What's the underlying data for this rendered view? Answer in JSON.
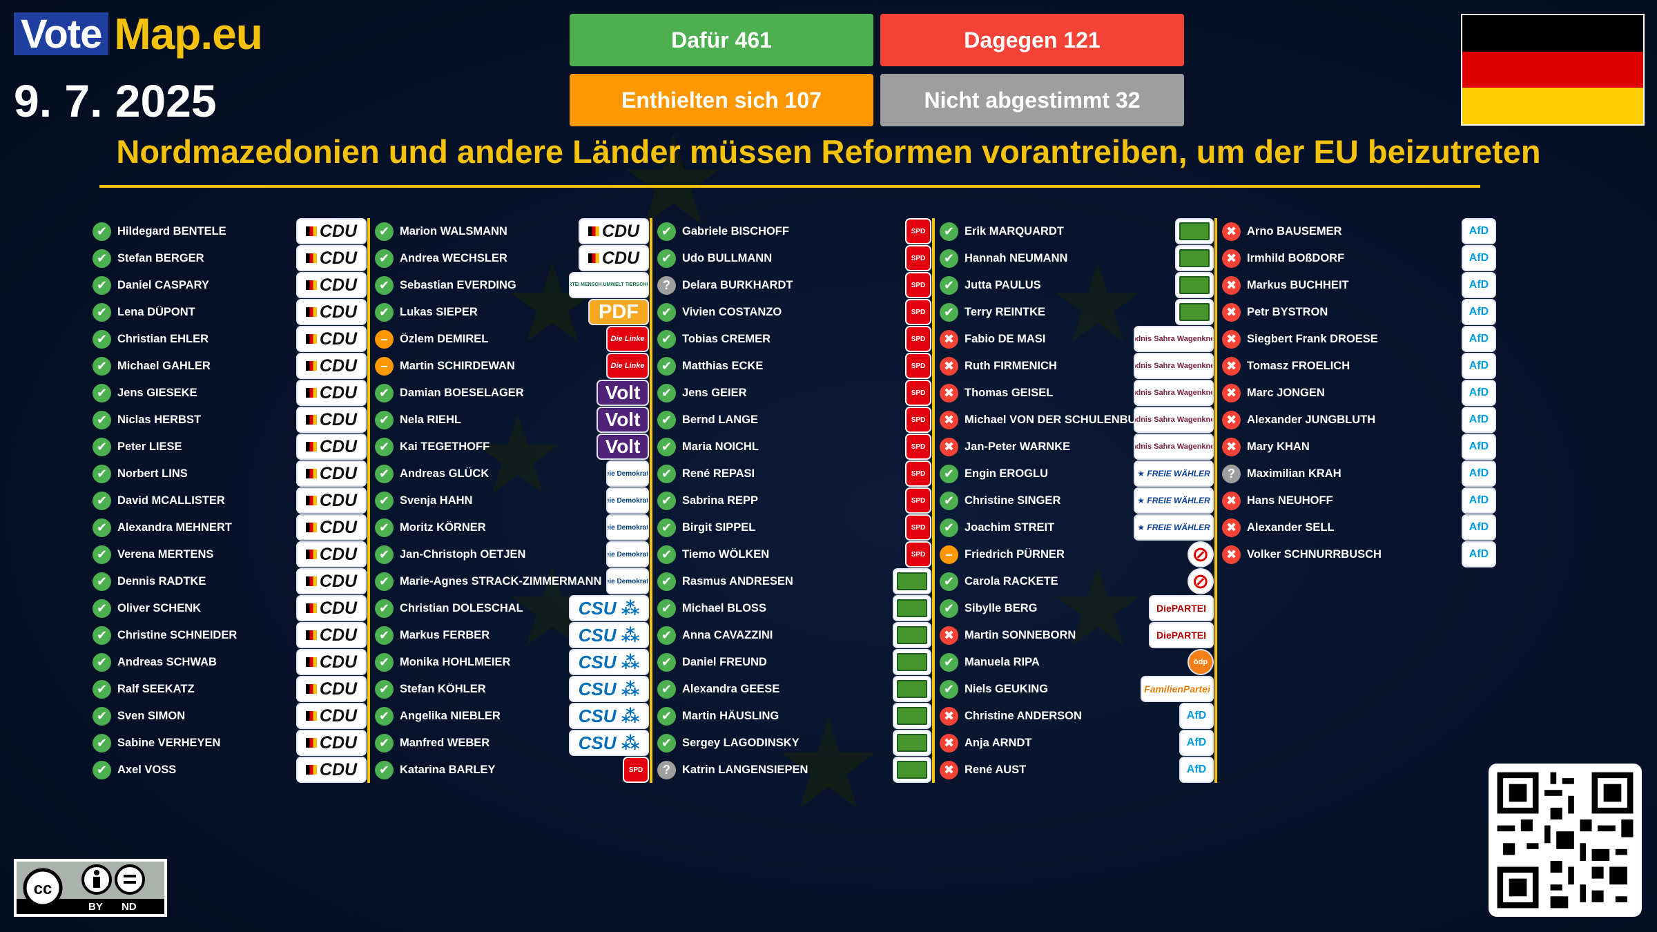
{
  "brand": {
    "part1": "Vote",
    "part2": "Map.eu"
  },
  "date": "9. 7. 2025",
  "stats": {
    "for": "Dafür 461",
    "against": "Dagegen 121",
    "abstain": "Enthielten sich 107",
    "absent": "Nicht abgestimmt 32"
  },
  "colors": {
    "for": "#4caf50",
    "against": "#f44336",
    "abstain": "#ff9800",
    "absent": "#9e9e9e",
    "accent": "#f4c20d"
  },
  "flag": {
    "country": "Germany",
    "stripes": [
      "#000000",
      "#dd0000",
      "#ffce00"
    ]
  },
  "title": "Nordmazedonien und andere Länder müssen Reformen vorantreiben, um der EU beizutreten",
  "license": {
    "labels": [
      "BY",
      "ND"
    ]
  },
  "logo_text": {
    "cdu": "CDU",
    "csu": "CSU",
    "spd": "SPD",
    "afd": "AfD",
    "volt": "Volt",
    "linke": "Die Linke",
    "pdf": "PDF",
    "partei": "DiePARTEI",
    "familien": "Familien"
  },
  "columns": [
    [
      {
        "name": "Hildegard BENTELE",
        "vote": "for",
        "party": "cdu"
      },
      {
        "name": "Stefan BERGER",
        "vote": "for",
        "party": "cdu"
      },
      {
        "name": "Daniel CASPARY",
        "vote": "for",
        "party": "cdu"
      },
      {
        "name": "Lena DÜPONT",
        "vote": "for",
        "party": "cdu"
      },
      {
        "name": "Christian EHLER",
        "vote": "for",
        "party": "cdu"
      },
      {
        "name": "Michael GAHLER",
        "vote": "for",
        "party": "cdu"
      },
      {
        "name": "Jens GIESEKE",
        "vote": "for",
        "party": "cdu"
      },
      {
        "name": "Niclas HERBST",
        "vote": "for",
        "party": "cdu"
      },
      {
        "name": "Peter LIESE",
        "vote": "for",
        "party": "cdu"
      },
      {
        "name": "Norbert LINS",
        "vote": "for",
        "party": "cdu"
      },
      {
        "name": "David MCALLISTER",
        "vote": "for",
        "party": "cdu"
      },
      {
        "name": "Alexandra MEHNERT",
        "vote": "for",
        "party": "cdu"
      },
      {
        "name": "Verena MERTENS",
        "vote": "for",
        "party": "cdu"
      },
      {
        "name": "Dennis RADTKE",
        "vote": "for",
        "party": "cdu"
      },
      {
        "name": "Oliver SCHENK",
        "vote": "for",
        "party": "cdu"
      },
      {
        "name": "Christine SCHNEIDER",
        "vote": "for",
        "party": "cdu"
      },
      {
        "name": "Andreas SCHWAB",
        "vote": "for",
        "party": "cdu"
      },
      {
        "name": "Ralf SEEKATZ",
        "vote": "for",
        "party": "cdu"
      },
      {
        "name": "Sven SIMON",
        "vote": "for",
        "party": "cdu"
      },
      {
        "name": "Sabine VERHEYEN",
        "vote": "for",
        "party": "cdu"
      },
      {
        "name": "Axel VOSS",
        "vote": "for",
        "party": "cdu"
      }
    ],
    [
      {
        "name": "Marion WALSMANN",
        "vote": "for",
        "party": "cdu"
      },
      {
        "name": "Andrea WECHSLER",
        "vote": "for",
        "party": "cdu"
      },
      {
        "name": "Sebastian EVERDING",
        "vote": "for",
        "party": "tier"
      },
      {
        "name": "Lukas SIEPER",
        "vote": "for",
        "party": "pdf"
      },
      {
        "name": "Özlem DEMIREL",
        "vote": "abstain",
        "party": "linke"
      },
      {
        "name": "Martin SCHIRDEWAN",
        "vote": "abstain",
        "party": "linke"
      },
      {
        "name": "Damian BOESELAGER",
        "vote": "for",
        "party": "volt"
      },
      {
        "name": "Nela RIEHL",
        "vote": "for",
        "party": "volt"
      },
      {
        "name": "Kai TEGETHOFF",
        "vote": "for",
        "party": "volt"
      },
      {
        "name": "Andreas GLÜCK",
        "vote": "for",
        "party": "fdp"
      },
      {
        "name": "Svenja HAHN",
        "vote": "for",
        "party": "fdp"
      },
      {
        "name": "Moritz KÖRNER",
        "vote": "for",
        "party": "fdp"
      },
      {
        "name": "Jan-Christoph OETJEN",
        "vote": "for",
        "party": "fdp"
      },
      {
        "name": "Marie-Agnes STRACK-ZIMMERMANN",
        "vote": "for",
        "party": "fdp"
      },
      {
        "name": "Christian DOLESCHAL",
        "vote": "for",
        "party": "csu"
      },
      {
        "name": "Markus FERBER",
        "vote": "for",
        "party": "csu"
      },
      {
        "name": "Monika HOHLMEIER",
        "vote": "for",
        "party": "csu"
      },
      {
        "name": "Stefan KÖHLER",
        "vote": "for",
        "party": "csu"
      },
      {
        "name": "Angelika NIEBLER",
        "vote": "for",
        "party": "csu"
      },
      {
        "name": "Manfred WEBER",
        "vote": "for",
        "party": "csu"
      },
      {
        "name": "Katarina BARLEY",
        "vote": "for",
        "party": "spd"
      }
    ],
    [
      {
        "name": "Gabriele BISCHOFF",
        "vote": "for",
        "party": "spd"
      },
      {
        "name": "Udo BULLMANN",
        "vote": "for",
        "party": "spd"
      },
      {
        "name": "Delara BURKHARDT",
        "vote": "absent",
        "party": "spd"
      },
      {
        "name": "Vivien COSTANZO",
        "vote": "for",
        "party": "spd"
      },
      {
        "name": "Tobias CREMER",
        "vote": "for",
        "party": "spd"
      },
      {
        "name": "Matthias ECKE",
        "vote": "for",
        "party": "spd"
      },
      {
        "name": "Jens GEIER",
        "vote": "for",
        "party": "spd"
      },
      {
        "name": "Bernd LANGE",
        "vote": "for",
        "party": "spd"
      },
      {
        "name": "Maria NOICHL",
        "vote": "for",
        "party": "spd"
      },
      {
        "name": "René REPASI",
        "vote": "for",
        "party": "spd"
      },
      {
        "name": "Sabrina REPP",
        "vote": "for",
        "party": "spd"
      },
      {
        "name": "Birgit SIPPEL",
        "vote": "for",
        "party": "spd"
      },
      {
        "name": "Tiemo WÖLKEN",
        "vote": "for",
        "party": "spd"
      },
      {
        "name": "Rasmus ANDRESEN",
        "vote": "for",
        "party": "gruene"
      },
      {
        "name": "Michael BLOSS",
        "vote": "for",
        "party": "gruene"
      },
      {
        "name": "Anna CAVAZZINI",
        "vote": "for",
        "party": "gruene"
      },
      {
        "name": "Daniel FREUND",
        "vote": "for",
        "party": "gruene"
      },
      {
        "name": "Alexandra GEESE",
        "vote": "for",
        "party": "gruene"
      },
      {
        "name": "Martin HÄUSLING",
        "vote": "for",
        "party": "gruene"
      },
      {
        "name": "Sergey LAGODINSKY",
        "vote": "for",
        "party": "gruene"
      },
      {
        "name": "Katrin LANGENSIEPEN",
        "vote": "absent",
        "party": "gruene"
      }
    ],
    [
      {
        "name": "Erik MARQUARDT",
        "vote": "for",
        "party": "gruene"
      },
      {
        "name": "Hannah NEUMANN",
        "vote": "for",
        "party": "gruene"
      },
      {
        "name": "Jutta PAULUS",
        "vote": "for",
        "party": "gruene"
      },
      {
        "name": "Terry REINTKE",
        "vote": "for",
        "party": "gruene"
      },
      {
        "name": "Fabio DE MASI",
        "vote": "against",
        "party": "bsw"
      },
      {
        "name": "Ruth FIRMENICH",
        "vote": "against",
        "party": "bsw"
      },
      {
        "name": "Thomas GEISEL",
        "vote": "against",
        "party": "bsw"
      },
      {
        "name": "Michael VON DER SCHULENBURG",
        "vote": "against",
        "party": "bsw"
      },
      {
        "name": "Jan-Peter WARNKE",
        "vote": "against",
        "party": "bsw"
      },
      {
        "name": "Engin EROGLU",
        "vote": "for",
        "party": "fw"
      },
      {
        "name": "Christine SINGER",
        "vote": "for",
        "party": "fw"
      },
      {
        "name": "Joachim STREIT",
        "vote": "for",
        "party": "fw"
      },
      {
        "name": "Friedrich PÜRNER",
        "vote": "abstain",
        "party": "none"
      },
      {
        "name": "Carola RACKETE",
        "vote": "for",
        "party": "none"
      },
      {
        "name": "Sibylle BERG",
        "vote": "for",
        "party": "partei"
      },
      {
        "name": "Martin SONNEBORN",
        "vote": "against",
        "party": "partei"
      },
      {
        "name": "Manuela RIPA",
        "vote": "for",
        "party": "oedp"
      },
      {
        "name": "Niels GEUKING",
        "vote": "for",
        "party": "familien"
      },
      {
        "name": "Christine ANDERSON",
        "vote": "against",
        "party": "afd"
      },
      {
        "name": "Anja ARNDT",
        "vote": "against",
        "party": "afd"
      },
      {
        "name": "René AUST",
        "vote": "against",
        "party": "afd"
      }
    ],
    [
      {
        "name": "Arno BAUSEMER",
        "vote": "against",
        "party": "afd"
      },
      {
        "name": "Irmhild BOßDORF",
        "vote": "against",
        "party": "afd"
      },
      {
        "name": "Markus BUCHHEIT",
        "vote": "against",
        "party": "afd"
      },
      {
        "name": "Petr BYSTRON",
        "vote": "against",
        "party": "afd"
      },
      {
        "name": "Siegbert Frank DROESE",
        "vote": "against",
        "party": "afd"
      },
      {
        "name": "Tomasz FROELICH",
        "vote": "against",
        "party": "afd"
      },
      {
        "name": "Marc JONGEN",
        "vote": "against",
        "party": "afd"
      },
      {
        "name": "Alexander JUNGBLUTH",
        "vote": "against",
        "party": "afd"
      },
      {
        "name": "Mary KHAN",
        "vote": "against",
        "party": "afd"
      },
      {
        "name": "Maximilian KRAH",
        "vote": "absent",
        "party": "afd"
      },
      {
        "name": "Hans NEUHOFF",
        "vote": "against",
        "party": "afd"
      },
      {
        "name": "Alexander SELL",
        "vote": "against",
        "party": "afd"
      },
      {
        "name": "Volker SCHNURRBUSCH",
        "vote": "against",
        "party": "afd"
      }
    ]
  ]
}
